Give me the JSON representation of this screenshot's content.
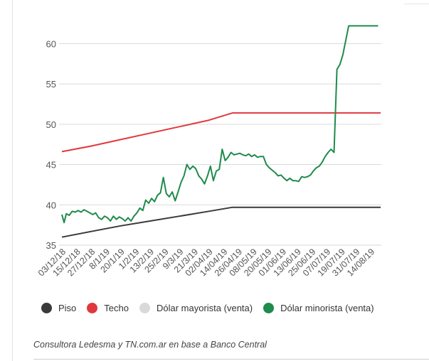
{
  "chart_data": {
    "type": "line",
    "ylim": [
      35,
      62.5
    ],
    "yticks": [
      35,
      40,
      45,
      50,
      55,
      60
    ],
    "xlim": [
      0,
      21.67
    ],
    "xticks": [
      "03/12/18",
      "15/12/18",
      "27/12/18",
      "8/1/19",
      "20/1/19",
      "1/2/19",
      "13/2/19",
      "25/2/19",
      "9/3/19",
      "21/3/19",
      "02/04/19",
      "14/04/19",
      "26/04/19",
      "08/05/19",
      "20/05/19",
      "01/06/19",
      "13/06/19",
      "25/06/19",
      "07/07/19",
      "19/07/19",
      "31/07/19",
      "14/08/19"
    ],
    "legend_position": "bottom",
    "series": [
      {
        "name": "Piso",
        "color": "#3a3a3a",
        "x": [
          0,
          2,
          4,
          6,
          8,
          10,
          11.6,
          21.67
        ],
        "y": [
          36.0,
          36.7,
          37.4,
          38.0,
          38.6,
          39.2,
          39.7,
          39.7
        ]
      },
      {
        "name": "Techo",
        "color": "#e0383e",
        "x": [
          0,
          2,
          4,
          6,
          8,
          10,
          11.6,
          21.67
        ],
        "y": [
          46.6,
          47.3,
          48.1,
          48.9,
          49.7,
          50.5,
          51.4,
          51.4
        ]
      },
      {
        "name": "Dólar mayorista (venta)",
        "color": "#d9d9d9",
        "x": [],
        "y": []
      },
      {
        "name": "Dólar minorista (venta)",
        "color": "#1f8b4c",
        "x": [
          0,
          0.15,
          0.3,
          0.5,
          0.7,
          0.9,
          1.1,
          1.3,
          1.5,
          1.7,
          1.9,
          2.1,
          2.3,
          2.5,
          2.7,
          2.9,
          3.1,
          3.3,
          3.5,
          3.7,
          3.9,
          4.1,
          4.3,
          4.5,
          4.7,
          4.9,
          5.1,
          5.3,
          5.5,
          5.7,
          5.9,
          6.1,
          6.3,
          6.5,
          6.7,
          6.9,
          7.1,
          7.3,
          7.5,
          7.7,
          7.9,
          8.1,
          8.3,
          8.5,
          8.7,
          8.9,
          9.1,
          9.3,
          9.5,
          9.7,
          9.9,
          10.1,
          10.3,
          10.5,
          10.7,
          10.9,
          11.1,
          11.3,
          11.5,
          11.7,
          11.9,
          12.1,
          12.3,
          12.5,
          12.7,
          12.9,
          13.1,
          13.3,
          13.5,
          13.7,
          13.9,
          14.1,
          14.3,
          14.5,
          14.7,
          14.9,
          15.1,
          15.3,
          15.5,
          15.7,
          15.9,
          16.1,
          16.3,
          16.5,
          16.7,
          16.9,
          17.1,
          17.3,
          17.5,
          17.7,
          17.9,
          18.1,
          18.3,
          18.5,
          18.7,
          18.9,
          19.1,
          19.3,
          19.5,
          19.7,
          19.9,
          20.1,
          20.3,
          20.5,
          20.7,
          20.9,
          21.0,
          21.1,
          21.2,
          21.3,
          21.4,
          21.5
        ],
        "y": [
          38.8,
          37.8,
          38.9,
          38.7,
          39.2,
          39.1,
          39.3,
          39.1,
          39.4,
          39.2,
          39.0,
          38.8,
          39.0,
          38.4,
          38.2,
          38.6,
          38.4,
          38.0,
          38.6,
          38.2,
          38.5,
          38.3,
          38.0,
          38.4,
          38.0,
          38.6,
          39.0,
          39.6,
          39.3,
          40.6,
          40.2,
          40.8,
          40.4,
          41.2,
          41.5,
          43.4,
          41.4,
          41.0,
          41.6,
          40.5,
          41.6,
          42.8,
          43.6,
          45.0,
          44.4,
          44.8,
          44.5,
          43.6,
          43.2,
          42.6,
          43.6,
          44.8,
          43.0,
          44.2,
          44.4,
          46.9,
          45.5,
          45.9,
          46.5,
          46.2,
          46.3,
          46.4,
          46.2,
          46.1,
          46.3,
          46.0,
          46.2,
          45.9,
          46.0,
          46.0,
          45.0,
          44.6,
          44.3,
          44.0,
          43.6,
          43.7,
          43.3,
          43.0,
          43.3,
          43.0,
          43.0,
          42.9,
          43.5,
          43.4,
          43.5,
          43.7,
          44.2,
          44.6,
          44.8,
          45.3,
          46.0,
          46.5,
          46.9,
          46.5,
          56.8,
          57.4,
          58.6,
          60.4,
          62.2,
          62.2,
          62.2,
          62.2,
          62.2,
          62.2,
          62.2,
          62.2,
          62.2,
          62.2,
          62.2,
          62.2,
          62.2,
          62.2
        ]
      }
    ]
  },
  "source": "Consultora Ledesma y TN.com.ar en base a Banco Central"
}
